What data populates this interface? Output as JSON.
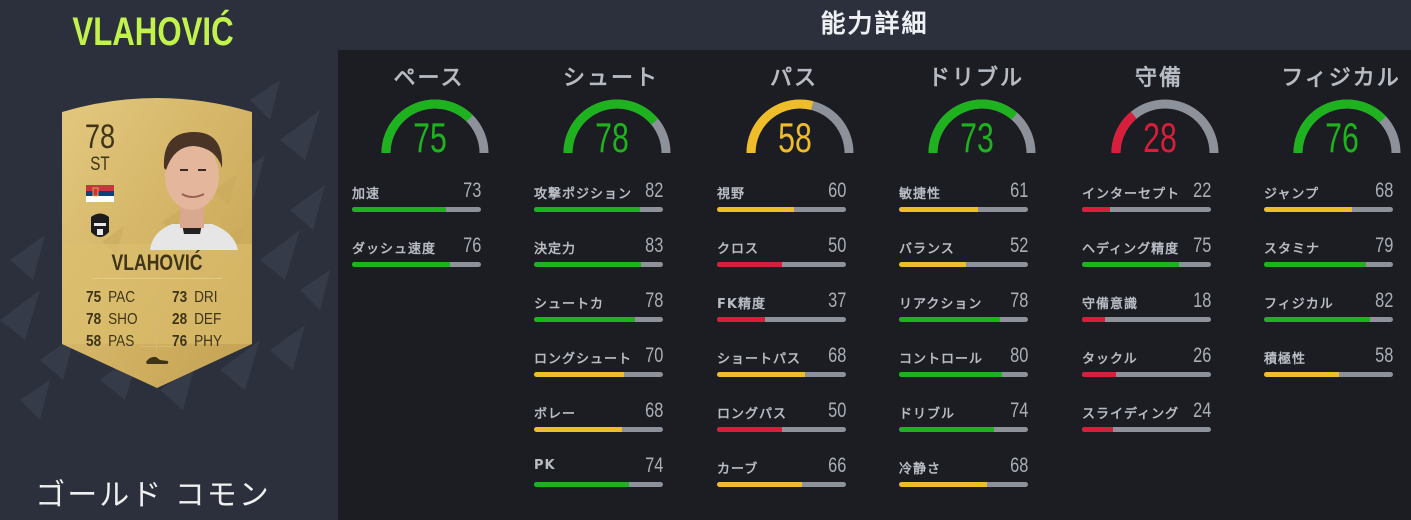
{
  "player": {
    "name_title": "VLAHOVIĆ",
    "card_type": "ゴールド コモン",
    "card": {
      "rating": "78",
      "position": "ST",
      "name": "VLAHOVIĆ",
      "nation_flag": "serbia-flag",
      "club_badge": "piemonte-calcio-badge",
      "boot_icon": "boot-icon",
      "stats_left": [
        {
          "value": "75",
          "label": "PAC"
        },
        {
          "value": "78",
          "label": "SHO"
        },
        {
          "value": "58",
          "label": "PAS"
        }
      ],
      "stats_right": [
        {
          "value": "73",
          "label": "DRI"
        },
        {
          "value": "28",
          "label": "DEF"
        },
        {
          "value": "76",
          "label": "PHY"
        }
      ]
    }
  },
  "colors": {
    "green": "#1fb21f",
    "yellow": "#f0bd2a",
    "red": "#d81e3a",
    "track": "#8d9199",
    "title_accent": "#c2f24c"
  },
  "detail": {
    "title": "能力詳細",
    "categories": [
      {
        "name": "ペース",
        "value": "75",
        "color": "green",
        "stats": [
          {
            "label": "加速",
            "value": "73",
            "color": "green"
          },
          {
            "label": "ダッシュ速度",
            "value": "76",
            "color": "green"
          }
        ]
      },
      {
        "name": "シュート",
        "value": "78",
        "color": "green",
        "stats": [
          {
            "label": "攻撃ポジション",
            "value": "82",
            "color": "green"
          },
          {
            "label": "決定力",
            "value": "83",
            "color": "green"
          },
          {
            "label": "シュートカ",
            "value": "78",
            "color": "green"
          },
          {
            "label": "ロングシュート",
            "value": "70",
            "color": "yellow"
          },
          {
            "label": "ボレー",
            "value": "68",
            "color": "yellow"
          },
          {
            "label": "PK",
            "value": "74",
            "color": "green"
          }
        ]
      },
      {
        "name": "パス",
        "value": "58",
        "color": "yellow",
        "stats": [
          {
            "label": "視野",
            "value": "60",
            "color": "yellow"
          },
          {
            "label": "クロス",
            "value": "50",
            "color": "red"
          },
          {
            "label": "FK精度",
            "value": "37",
            "color": "red"
          },
          {
            "label": "ショートパス",
            "value": "68",
            "color": "yellow"
          },
          {
            "label": "ロングパス",
            "value": "50",
            "color": "red"
          },
          {
            "label": "カーブ",
            "value": "66",
            "color": "yellow"
          }
        ]
      },
      {
        "name": "ドリブル",
        "value": "73",
        "color": "green",
        "stats": [
          {
            "label": "敏捷性",
            "value": "61",
            "color": "yellow"
          },
          {
            "label": "バランス",
            "value": "52",
            "color": "yellow"
          },
          {
            "label": "リアクション",
            "value": "78",
            "color": "green"
          },
          {
            "label": "コントロール",
            "value": "80",
            "color": "green"
          },
          {
            "label": "ドリブル",
            "value": "74",
            "color": "green"
          },
          {
            "label": "冷静さ",
            "value": "68",
            "color": "yellow"
          }
        ]
      },
      {
        "name": "守備",
        "value": "28",
        "color": "red",
        "stats": [
          {
            "label": "インターセプト",
            "value": "22",
            "color": "red"
          },
          {
            "label": "ヘディング精度",
            "value": "75",
            "color": "green"
          },
          {
            "label": "守備意識",
            "value": "18",
            "color": "red"
          },
          {
            "label": "タックル",
            "value": "26",
            "color": "red"
          },
          {
            "label": "スライディング",
            "value": "24",
            "color": "red"
          }
        ]
      },
      {
        "name": "フィジカル",
        "value": "76",
        "color": "green",
        "stats": [
          {
            "label": "ジャンプ",
            "value": "68",
            "color": "yellow"
          },
          {
            "label": "スタミナ",
            "value": "79",
            "color": "green"
          },
          {
            "label": "フィジカル",
            "value": "82",
            "color": "green"
          },
          {
            "label": "積極性",
            "value": "58",
            "color": "yellow"
          }
        ]
      }
    ]
  }
}
